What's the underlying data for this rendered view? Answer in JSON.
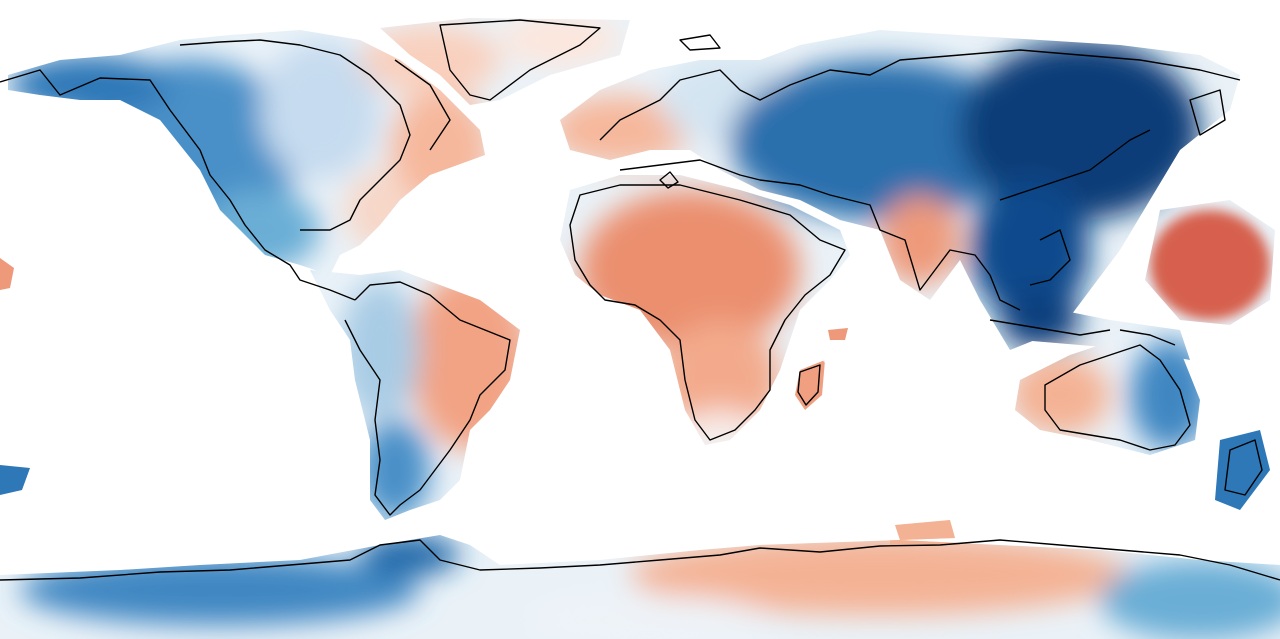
{
  "map": {
    "type": "choropleth-field",
    "projection": "equirectangular",
    "legend": "none",
    "grid": false,
    "colormap": {
      "name": "diverging-blue-red",
      "negative_strong": "#08306b",
      "negative_mid": "#2171b5",
      "negative_light": "#9ecae1",
      "neutral": "#f4f1ef",
      "positive_light": "#fbc8b0",
      "positive_mid": "#ee9a7a",
      "positive_strong": "#d6604d"
    },
    "ocean_color": "#ffffff",
    "coastline_color": "#000000"
  }
}
